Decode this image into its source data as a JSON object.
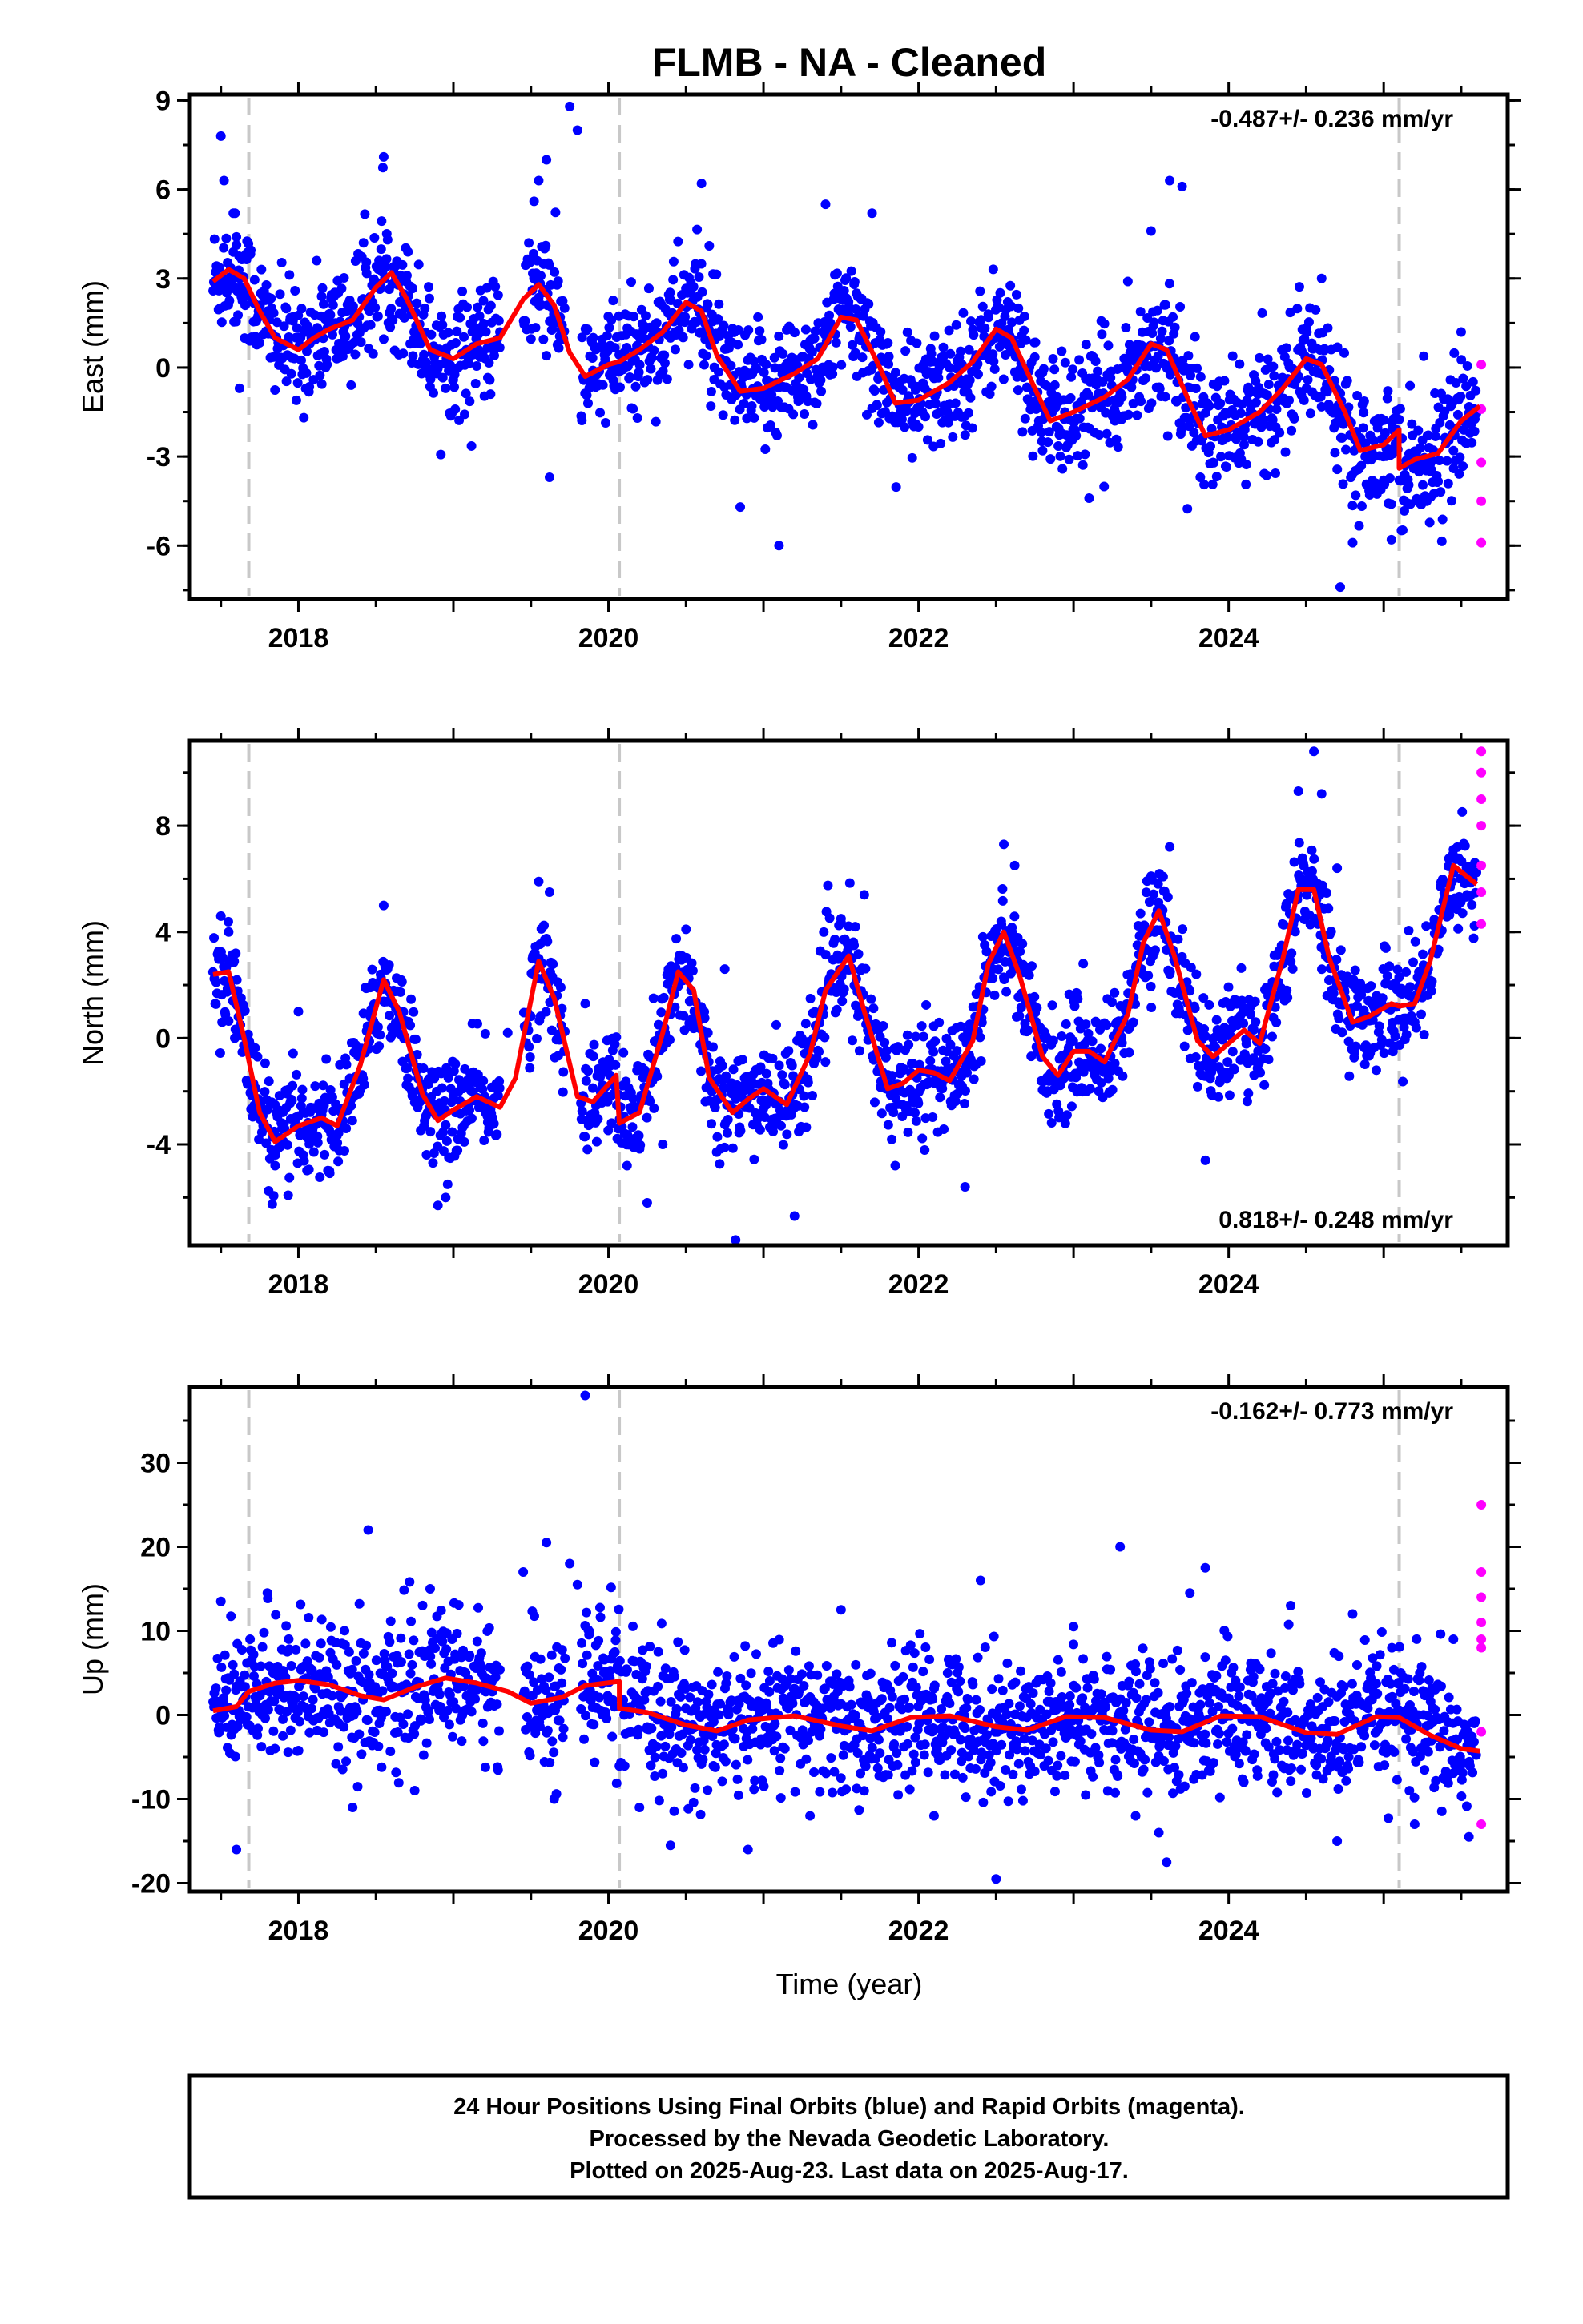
{
  "title": "FLMB  - NA - Cleaned",
  "xlabel": "Time (year)",
  "colors": {
    "final": "#0000ff",
    "rapid": "#ff00ff",
    "model": "#ff0000",
    "break": "#c8c8c8",
    "frame": "#000000"
  },
  "footer": {
    "line1": "24 Hour Positions Using Final Orbits (blue) and Rapid Orbits (magenta).",
    "line2": "Processed by the Nevada Geodetic Laboratory.",
    "line3": "Plotted on 2025-Aug-23. Last data on 2025-Aug-17."
  },
  "chart_data": [
    {
      "type": "scatter",
      "panel": "east",
      "ylabel": "East (mm)",
      "rate_text": "-0.487+/- 0.236 mm/yr",
      "rate_position": "top-right",
      "xlim": [
        2017.3,
        2025.8
      ],
      "ylim": [
        -7.8,
        9.2
      ],
      "x_ticks": [
        2018,
        2020,
        2022,
        2024
      ],
      "x_tick_labels": [
        "2018",
        "2020",
        "2022",
        "2024"
      ],
      "y_ticks": [
        -6,
        -3,
        0,
        3,
        6,
        9
      ],
      "y_tick_labels": [
        "-6",
        "-3",
        "0",
        "3",
        "6",
        "9"
      ],
      "breaks": [
        2017.68,
        2020.07,
        2025.1
      ],
      "model": {
        "x": [
          2017.45,
          2017.55,
          2017.65,
          2017.75,
          2017.85,
          2018.0,
          2018.1,
          2018.2,
          2018.35,
          2018.5,
          2018.6,
          2018.7,
          2018.85,
          2019.0,
          2019.15,
          2019.3,
          2019.45,
          2019.55,
          2019.65,
          2019.75,
          2019.85,
          2020.0,
          2020.07,
          2020.2,
          2020.35,
          2020.5,
          2020.6,
          2020.7,
          2020.85,
          2021.0,
          2021.2,
          2021.35,
          2021.5,
          2021.6,
          2021.75,
          2021.85,
          2022.0,
          2022.2,
          2022.35,
          2022.5,
          2022.6,
          2022.75,
          2022.85,
          2023.0,
          2023.2,
          2023.35,
          2023.5,
          2023.6,
          2023.75,
          2023.85,
          2024.0,
          2024.2,
          2024.35,
          2024.5,
          2024.6,
          2024.75,
          2024.85,
          2025.0,
          2025.1,
          2025.1,
          2025.2,
          2025.35,
          2025.5,
          2025.62
        ],
        "y": [
          2.9,
          3.3,
          3.0,
          1.9,
          1.0,
          0.6,
          1.0,
          1.3,
          1.6,
          2.7,
          3.2,
          2.3,
          0.6,
          0.3,
          0.8,
          1.0,
          2.3,
          2.8,
          2.1,
          0.5,
          -0.3,
          0.1,
          0.2,
          0.6,
          1.2,
          2.2,
          1.9,
          0.4,
          -0.8,
          -0.7,
          -0.2,
          0.3,
          1.7,
          1.6,
          0.0,
          -1.2,
          -1.1,
          -0.5,
          0.2,
          1.3,
          1.0,
          -0.7,
          -1.8,
          -1.5,
          -1.0,
          -0.4,
          0.8,
          0.6,
          -1.2,
          -2.3,
          -2.1,
          -1.5,
          -0.7,
          0.3,
          0.1,
          -1.5,
          -2.8,
          -2.6,
          -2.1,
          -3.4,
          -3.1,
          -2.9,
          -1.8,
          -1.3
        ]
      },
      "final_points": {
        "x": [
          2017.5,
          2017.52,
          2017.58,
          2017.6,
          2017.62,
          2017.66,
          2017.8,
          2017.9,
          2018.05,
          2018.15,
          2018.3,
          2018.42,
          2018.55,
          2018.7,
          2018.95,
          2019.3,
          2019.52,
          2019.55,
          2019.6,
          2019.62,
          2019.75,
          2019.8,
          2019.9,
          2020.4,
          2020.6,
          2020.65,
          2020.85,
          2021.1,
          2021.3,
          2021.4,
          2021.7,
          2022.0,
          2022.2,
          2022.45,
          2022.8,
          2023.1,
          2023.35,
          2023.5,
          2023.62,
          2023.7,
          2023.9,
          2024.1,
          2024.6,
          2024.72,
          2024.8,
          2025.0,
          2025.05,
          2025.3,
          2025.45,
          2025.5
        ],
        "y": [
          7.8,
          6.3,
          5.2,
          4.4,
          -0.7,
          3.8,
          1.9,
          0.8,
          1.2,
          2.4,
          1.0,
          4.2,
          7.1,
          3.1,
          0.5,
          1.2,
          5.6,
          6.3,
          7.0,
          -3.7,
          8.8,
          8.0,
          -0.1,
          1.0,
          6.2,
          4.1,
          -4.7,
          -6.0,
          0.9,
          5.5,
          5.2,
          -2.0,
          0.0,
          1.8,
          -2.8,
          -4.4,
          2.9,
          4.6,
          6.3,
          6.1,
          -3.2,
          -2.6,
          3.0,
          -7.4,
          -5.9,
          -3.8,
          -5.8,
          -3.5,
          -2.8,
          1.2
        ]
      },
      "rapid_points": {
        "x": [
          2025.63,
          2025.63,
          2025.63,
          2025.63,
          2025.63
        ],
        "y": [
          0.1,
          -1.4,
          -3.2,
          -4.5,
          -5.9
        ]
      }
    },
    {
      "type": "scatter",
      "panel": "north",
      "ylabel": "North (mm)",
      "rate_text": "0.818+/- 0.248 mm/yr",
      "rate_position": "bottom-right",
      "xlim": [
        2017.3,
        2025.8
      ],
      "ylim": [
        -7.8,
        11.2
      ],
      "x_ticks": [
        2018,
        2020,
        2022,
        2024
      ],
      "x_tick_labels": [
        "2018",
        "2020",
        "2022",
        "2024"
      ],
      "y_ticks": [
        -4,
        0,
        4,
        8
      ],
      "y_tick_labels": [
        "-4",
        "0",
        "4",
        "8"
      ],
      "breaks": [
        2017.68,
        2020.07,
        2025.1
      ],
      "model": {
        "x": [
          2017.45,
          2017.55,
          2017.65,
          2017.75,
          2017.85,
          2018.0,
          2018.15,
          2018.25,
          2018.4,
          2018.55,
          2018.65,
          2018.8,
          2018.9,
          2019.0,
          2019.15,
          2019.3,
          2019.4,
          2019.55,
          2019.65,
          2019.8,
          2019.9,
          2020.05,
          2020.07,
          2020.2,
          2020.35,
          2020.45,
          2020.55,
          2020.65,
          2020.8,
          2020.9,
          2021.0,
          2021.15,
          2021.3,
          2021.4,
          2021.55,
          2021.65,
          2021.8,
          2021.9,
          2022.0,
          2022.1,
          2022.2,
          2022.35,
          2022.45,
          2022.55,
          2022.65,
          2022.8,
          2022.9,
          2023.0,
          2023.1,
          2023.2,
          2023.35,
          2023.45,
          2023.55,
          2023.65,
          2023.8,
          2023.9,
          2024.0,
          2024.1,
          2024.2,
          2024.35,
          2024.45,
          2024.55,
          2024.65,
          2024.8,
          2024.9,
          2025.05,
          2025.1,
          2025.2,
          2025.3,
          2025.45,
          2025.6
        ],
        "y": [
          2.4,
          2.5,
          0.0,
          -2.8,
          -3.9,
          -3.3,
          -3.0,
          -3.3,
          -1.0,
          2.2,
          1.0,
          -2.1,
          -3.1,
          -2.7,
          -2.2,
          -2.6,
          -1.5,
          2.9,
          1.5,
          -2.2,
          -2.4,
          -1.4,
          -3.2,
          -2.8,
          0.2,
          2.5,
          1.8,
          -1.5,
          -2.8,
          -2.3,
          -1.9,
          -2.5,
          -0.6,
          1.8,
          3.1,
          1.0,
          -1.9,
          -1.7,
          -1.2,
          -1.3,
          -1.6,
          -0.1,
          2.8,
          4.0,
          2.4,
          -0.7,
          -1.4,
          -0.5,
          -0.5,
          -0.9,
          0.9,
          3.6,
          4.8,
          3.1,
          -0.1,
          -0.7,
          -0.2,
          0.3,
          -0.2,
          3.0,
          5.6,
          5.6,
          3.0,
          0.6,
          0.8,
          1.3,
          1.2,
          1.3,
          2.9,
          6.5,
          5.8
        ]
      },
      "final_points": {
        "x": [
          2017.5,
          2017.55,
          2017.85,
          2018.0,
          2018.2,
          2018.55,
          2018.9,
          2018.95,
          2019.35,
          2019.55,
          2019.62,
          2019.85,
          2020.12,
          2020.25,
          2020.35,
          2020.5,
          2020.75,
          2020.82,
          2021.2,
          2021.5,
          2021.65,
          2021.85,
          2022.3,
          2022.55,
          2022.62,
          2023.0,
          2023.5,
          2023.62,
          2023.85,
          2024.45,
          2024.55,
          2024.6,
          2024.7,
          2025.2,
          2025.45
        ],
        "y": [
          4.6,
          4.0,
          -4.8,
          1.0,
          -5.0,
          5.0,
          -6.3,
          -6.0,
          0.2,
          5.9,
          5.5,
          1.3,
          -4.8,
          -6.2,
          -4.0,
          4.1,
          2.6,
          -7.6,
          -6.7,
          4.5,
          5.4,
          -4.8,
          -5.6,
          7.3,
          6.5,
          1.4,
          6.1,
          7.2,
          -4.6,
          9.3,
          10.8,
          9.2,
          6.4,
          0.6,
          7.1
        ]
      },
      "rapid_points": {
        "x": [
          2025.63,
          2025.63,
          2025.63,
          2025.63,
          2025.63,
          2025.63,
          2025.63
        ],
        "y": [
          10.8,
          10.0,
          9.0,
          8.0,
          6.5,
          5.5,
          4.3
        ]
      }
    },
    {
      "type": "scatter",
      "panel": "up",
      "ylabel": "Up (mm)",
      "rate_text": "-0.162+/- 0.773 mm/yr",
      "rate_position": "top-right",
      "xlim": [
        2017.3,
        2025.8
      ],
      "ylim": [
        -21,
        39
      ],
      "x_ticks": [
        2018,
        2020,
        2022,
        2024
      ],
      "x_tick_labels": [
        "2018",
        "2020",
        "2022",
        "2024"
      ],
      "y_ticks": [
        -20,
        -10,
        0,
        10,
        20,
        30
      ],
      "y_tick_labels": [
        "-20",
        "-10",
        "0",
        "10",
        "20",
        "30"
      ],
      "breaks": [
        2017.68,
        2020.07,
        2025.1
      ],
      "model": {
        "x": [
          2017.45,
          2017.6,
          2017.68,
          2017.85,
          2018.0,
          2018.2,
          2018.4,
          2018.55,
          2018.75,
          2018.95,
          2019.15,
          2019.35,
          2019.5,
          2019.7,
          2019.85,
          2020.07,
          2020.07,
          2020.25,
          2020.5,
          2020.7,
          2020.9,
          2021.2,
          2021.5,
          2021.7,
          2021.95,
          2022.2,
          2022.5,
          2022.7,
          2022.95,
          2023.2,
          2023.5,
          2023.7,
          2023.95,
          2024.2,
          2024.5,
          2024.7,
          2024.95,
          2025.1,
          2025.3,
          2025.5,
          2025.62
        ],
        "y": [
          0.5,
          1.0,
          2.8,
          3.8,
          4.1,
          3.6,
          2.3,
          1.8,
          3.3,
          4.4,
          3.8,
          2.8,
          1.4,
          2.1,
          3.5,
          4.0,
          0.8,
          0.3,
          -1.2,
          -1.9,
          -0.6,
          -0.1,
          -1.3,
          -1.9,
          -0.3,
          -0.1,
          -1.4,
          -1.8,
          -0.2,
          -0.3,
          -1.8,
          -2.0,
          -0.1,
          -0.2,
          -2.1,
          -2.3,
          -0.2,
          -0.3,
          -2.4,
          -4.0,
          -4.3
        ]
      },
      "final_points": {
        "x": [
          2017.5,
          2017.6,
          2017.8,
          2017.9,
          2018.35,
          2018.45,
          2018.75,
          2018.85,
          2019.45,
          2019.6,
          2019.65,
          2019.75,
          2019.8,
          2019.85,
          2020.2,
          2020.4,
          2020.9,
          2021.3,
          2021.5,
          2022.1,
          2022.4,
          2022.5,
          2023.0,
          2023.3,
          2023.4,
          2023.55,
          2023.6,
          2023.75,
          2023.85,
          2024.4,
          2024.7,
          2024.8,
          2025.2,
          2025.45,
          2025.55
        ],
        "y": [
          13.5,
          -16.0,
          14.5,
          -2.5,
          -11.0,
          22.0,
          -9.0,
          15.0,
          17.0,
          20.5,
          -10.0,
          18.0,
          15.5,
          38.0,
          -11.0,
          -15.5,
          -16.0,
          -12.0,
          12.5,
          -12.0,
          16.0,
          -19.5,
          10.5,
          20.0,
          -12.0,
          -14.0,
          -17.5,
          14.5,
          17.5,
          13.0,
          -15.0,
          12.0,
          -13.0,
          9.0,
          -14.5
        ]
      },
      "rapid_points": {
        "x": [
          2025.63,
          2025.63,
          2025.63,
          2025.63,
          2025.63,
          2025.63,
          2025.63,
          2025.63
        ],
        "y": [
          25.0,
          17.0,
          14.0,
          11.0,
          9.0,
          8.0,
          -2.0,
          -13.0
        ]
      }
    }
  ]
}
